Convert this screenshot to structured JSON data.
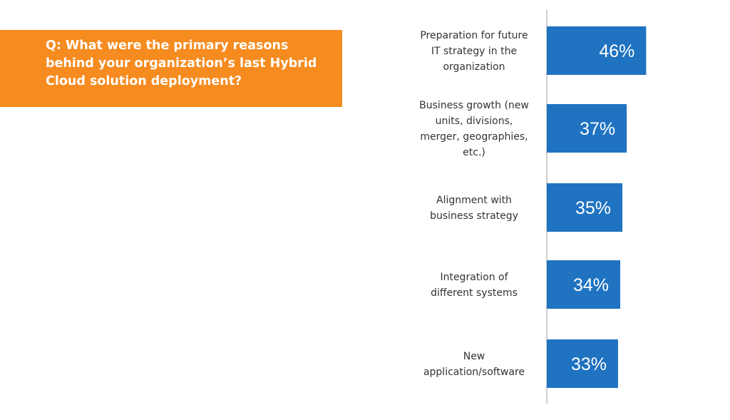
{
  "question": {
    "text": "Q: What were the primary reasons behind your organization’s last Hybrid Cloud solution deployment?",
    "background_color": "#f68b1f"
  },
  "chart_data": {
    "type": "bar",
    "orientation": "horizontal",
    "categories": [
      [
        "Preparation for future",
        "IT strategy in the",
        "organization"
      ],
      [
        "Business growth (new",
        "units, divisions,",
        "merger, geographies,",
        "etc.)"
      ],
      [
        "Alignment with",
        "business strategy"
      ],
      [
        "Integration of",
        "different systems"
      ],
      [
        "New",
        "application/software"
      ]
    ],
    "values": [
      46,
      37,
      35,
      34,
      33
    ],
    "value_labels": [
      "46%",
      "37%",
      "35%",
      "34%",
      "33%"
    ],
    "unit": "%",
    "bar_color": "#1f73c1",
    "axis_color": "#bdbdbd",
    "grid": false,
    "legend": "none"
  }
}
